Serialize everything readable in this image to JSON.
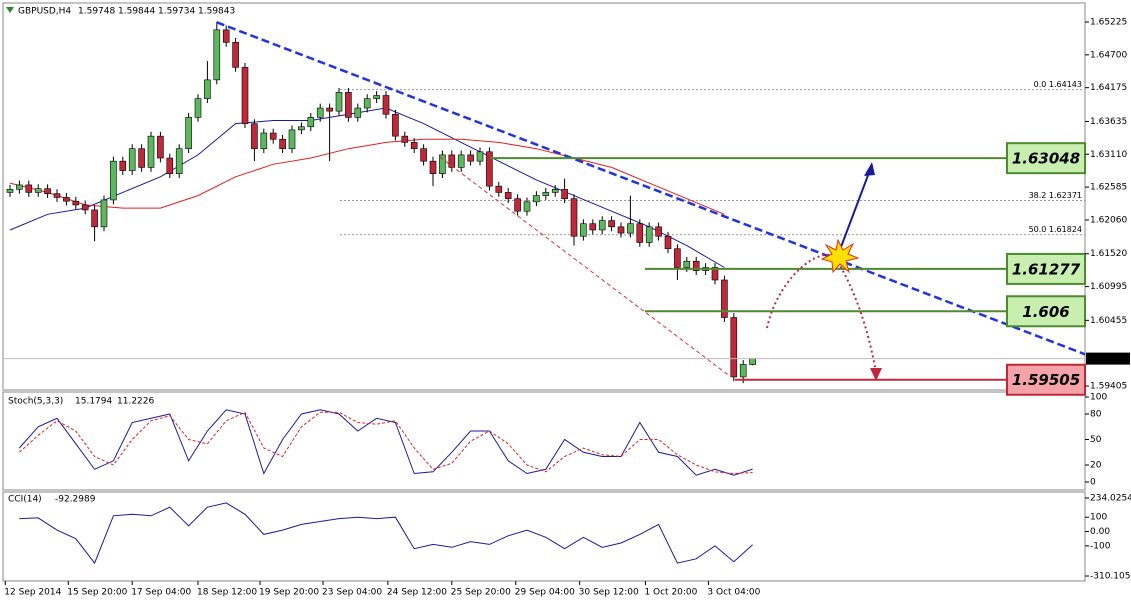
{
  "chart_data": [
    {
      "type": "candlestick",
      "title": "GBPUSD,H4",
      "open": [
        1.625,
        1.6255,
        1.6262,
        1.625,
        1.6256,
        1.6248,
        1.6242,
        1.6236,
        1.623,
        1.6222,
        1.6195,
        1.6238,
        1.63,
        1.6285,
        1.632,
        1.629,
        1.634,
        1.6305,
        1.628,
        1.632,
        1.637,
        1.64,
        1.643,
        1.651,
        1.649,
        1.645,
        1.636,
        1.632,
        1.6345,
        1.6335,
        1.632,
        1.635,
        1.6355,
        1.637,
        1.6385,
        1.638,
        1.641,
        1.637,
        1.6385,
        1.64,
        1.6405,
        1.6375,
        1.634,
        1.633,
        1.632,
        1.63,
        1.628,
        1.631,
        1.629,
        1.631,
        1.63,
        1.6315,
        1.626,
        1.625,
        1.624,
        1.622,
        1.6235,
        1.6245,
        1.625,
        1.6255,
        1.624,
        1.618,
        1.62,
        1.619,
        1.6205,
        1.6195,
        1.6185,
        1.62,
        1.617,
        1.6195,
        1.618,
        1.616,
        1.613,
        1.614,
        1.6125,
        1.613,
        1.611,
        1.605,
        1.5955,
        1.59748
      ],
      "high": [
        1.6262,
        1.6269,
        1.6269,
        1.6263,
        1.6263,
        1.6255,
        1.6249,
        1.6243,
        1.6237,
        1.6229,
        1.6245,
        1.6307,
        1.6307,
        1.6327,
        1.6327,
        1.6347,
        1.6347,
        1.6312,
        1.6327,
        1.6377,
        1.6407,
        1.646,
        1.6523,
        1.6517,
        1.6497,
        1.6457,
        1.6367,
        1.6352,
        1.6352,
        1.6342,
        1.6357,
        1.6362,
        1.6377,
        1.6392,
        1.6392,
        1.6417,
        1.6417,
        1.6392,
        1.6407,
        1.6412,
        1.6412,
        1.6382,
        1.6347,
        1.6337,
        1.6327,
        1.6307,
        1.6317,
        1.6317,
        1.6317,
        1.6317,
        1.6322,
        1.6322,
        1.6267,
        1.6257,
        1.6247,
        1.6242,
        1.6252,
        1.6257,
        1.6262,
        1.6272,
        1.6247,
        1.6207,
        1.6207,
        1.6212,
        1.6212,
        1.6202,
        1.6245,
        1.6207,
        1.6202,
        1.6202,
        1.6187,
        1.6167,
        1.6147,
        1.6147,
        1.6137,
        1.6137,
        1.6117,
        1.6057,
        1.5982,
        1.59844
      ],
      "low": [
        1.6243,
        1.6248,
        1.6243,
        1.6243,
        1.6241,
        1.6235,
        1.6229,
        1.6223,
        1.6215,
        1.6172,
        1.6188,
        1.6231,
        1.6278,
        1.6278,
        1.6283,
        1.6283,
        1.6298,
        1.6273,
        1.6273,
        1.6313,
        1.6363,
        1.6393,
        1.6423,
        1.6483,
        1.6443,
        1.6353,
        1.63,
        1.6313,
        1.6328,
        1.6313,
        1.6313,
        1.6343,
        1.6348,
        1.6363,
        1.63,
        1.6373,
        1.6363,
        1.6363,
        1.6378,
        1.6393,
        1.6368,
        1.6333,
        1.6323,
        1.6313,
        1.6293,
        1.626,
        1.6273,
        1.6283,
        1.6283,
        1.6293,
        1.6293,
        1.6253,
        1.6243,
        1.6233,
        1.6213,
        1.6213,
        1.6228,
        1.6238,
        1.6243,
        1.6233,
        1.6165,
        1.6173,
        1.6183,
        1.6183,
        1.6188,
        1.6178,
        1.6178,
        1.6163,
        1.6163,
        1.6173,
        1.6153,
        1.611,
        1.6123,
        1.6118,
        1.6118,
        1.6103,
        1.6043,
        1.5948,
        1.5945,
        1.59734
      ],
      "close": [
        1.6255,
        1.6262,
        1.625,
        1.6256,
        1.6248,
        1.6242,
        1.6236,
        1.623,
        1.6222,
        1.6195,
        1.6238,
        1.63,
        1.6285,
        1.632,
        1.629,
        1.634,
        1.6305,
        1.628,
        1.632,
        1.637,
        1.64,
        1.643,
        1.651,
        1.649,
        1.645,
        1.636,
        1.632,
        1.6345,
        1.6335,
        1.632,
        1.635,
        1.6355,
        1.637,
        1.6385,
        1.638,
        1.641,
        1.637,
        1.6385,
        1.64,
        1.6405,
        1.6375,
        1.634,
        1.633,
        1.632,
        1.63,
        1.628,
        1.631,
        1.629,
        1.631,
        1.63,
        1.6315,
        1.626,
        1.625,
        1.624,
        1.622,
        1.6235,
        1.6245,
        1.625,
        1.6255,
        1.624,
        1.618,
        1.62,
        1.619,
        1.6205,
        1.6195,
        1.6185,
        1.62,
        1.617,
        1.6195,
        1.618,
        1.616,
        1.613,
        1.614,
        1.6125,
        1.613,
        1.611,
        1.605,
        1.5955,
        1.5975,
        1.59843
      ],
      "up_color": "#5cb85c",
      "down_color": "#c0283a",
      "ylim": [
        1.59341,
        1.65529
      ],
      "yticks": [
        1.65225,
        {
          "value": 1.647,
          "label": "1.64700"
        },
        1.64175,
        1.63635,
        {
          "value": 1.6311,
          "label": "1.63110"
        },
        1.62585,
        {
          "value": 1.6206,
          "label": "1.62060"
        },
        {
          "value": 1.6152,
          "label": "1.61520"
        },
        1.60995,
        1.60455,
        1.59405
      ],
      "xticks": [
        {
          "value": -0.5,
          "label": "12 Sep 2014"
        },
        {
          "value": 6.2,
          "label": "15 Sep 20:00"
        },
        {
          "value": 13,
          "label": "17 Sep 04:00"
        },
        {
          "value": 20,
          "label": "18 Sep 12:00"
        },
        {
          "value": 26.6,
          "label": "19 Sep 20:00"
        },
        {
          "value": 33.3,
          "label": "23 Sep 04:00"
        },
        {
          "value": 40.2,
          "label": "24 Sep 12:00"
        },
        {
          "value": 47,
          "label": "25 Sep 20:00"
        },
        {
          "value": 53.8,
          "label": "29 Sep 04:00"
        },
        {
          "value": 60.6,
          "label": "30 Sep 12:00"
        },
        {
          "value": 67.6,
          "label": "1 Oct 20:00"
        },
        {
          "value": 74.3,
          "label": "3 Oct 04:00"
        }
      ],
      "ma": [
        {
          "color": "#1a1aa0",
          "x": [
            0,
            4,
            8,
            12,
            16,
            20,
            24,
            28,
            32,
            36,
            40,
            44,
            48,
            52,
            56,
            60,
            64,
            68,
            72,
            76
          ],
          "values": [
            1.619,
            1.6215,
            1.6225,
            1.625,
            1.6275,
            1.631,
            1.636,
            1.6365,
            1.6365,
            1.6375,
            1.6385,
            1.636,
            1.633,
            1.63,
            1.627,
            1.6245,
            1.622,
            1.6195,
            1.6165,
            1.613
          ]
        },
        {
          "color": "#e02020",
          "x": [
            0,
            4,
            8,
            12,
            16,
            20,
            24,
            28,
            32,
            36,
            40,
            44,
            48,
            52,
            56,
            60,
            64,
            68,
            72,
            76
          ],
          "values": [
            1.6265,
            1.625,
            1.623,
            1.6225,
            1.6225,
            1.6245,
            1.6275,
            1.6295,
            1.6305,
            1.632,
            1.633,
            1.6335,
            1.6335,
            1.633,
            1.632,
            1.6305,
            1.629,
            1.6265,
            1.624,
            1.6215
          ]
        }
      ],
      "trendlines": [
        {
          "color": "#2233dd",
          "x": [
            22,
            114.4
          ],
          "y": [
            1.6522,
            1.5991
          ]
        },
        {
          "color": "#e03030",
          "x": [
            45.7,
            76.6
          ],
          "y": [
            1.6307,
            1.5956
          ]
        }
      ],
      "fib": [
        {
          "label": "0.0 1.64143",
          "value": 1.64143
        },
        {
          "label": "38.2 1.62371",
          "value": 1.62371
        },
        {
          "label": "50.0 1.61824",
          "value": 1.61824
        }
      ],
      "levels": [
        {
          "value": 1.63048,
          "color": "#4e8a2e",
          "fill": "#c8eeb0"
        },
        {
          "value": 1.61277,
          "color": "#4e8a2e",
          "fill": "#c8eeb0"
        },
        {
          "value": 1.606,
          "color": "#4e8a2e",
          "fill": "#c8eeb0"
        },
        {
          "value": 1.59505,
          "color": "#c0283a",
          "fill": "#f4a3a8"
        }
      ]
    },
    {
      "type": "line",
      "title": "Stoch(5,3,3)",
      "x": [
        1,
        3,
        5,
        7,
        9,
        11,
        13,
        15,
        17,
        19,
        21,
        23,
        25,
        27,
        29,
        31,
        33,
        35,
        37,
        39,
        41,
        43,
        45,
        47,
        49,
        51,
        53,
        55,
        57,
        59,
        61,
        63,
        65,
        67,
        69,
        71,
        73,
        75,
        77,
        79
      ],
      "series": [
        {
          "color": "#1a1aa0",
          "values": [
            40,
            65,
            75,
            45,
            15,
            25,
            70,
            75,
            80,
            25,
            60,
            85,
            80,
            10,
            50,
            80,
            85,
            80,
            60,
            75,
            70,
            10,
            12,
            35,
            60,
            60,
            25,
            10,
            15,
            50,
            35,
            30,
            30,
            70,
            35,
            30,
            8,
            15,
            8,
            15.1794
          ]
        },
        {
          "color": "#e02020",
          "dash": true,
          "values": [
            35,
            55,
            72,
            60,
            30,
            20,
            50,
            72,
            78,
            50,
            45,
            72,
            82,
            40,
            30,
            65,
            82,
            82,
            70,
            68,
            72,
            40,
            15,
            22,
            48,
            60,
            45,
            20,
            12,
            30,
            40,
            32,
            30,
            50,
            50,
            32,
            20,
            12,
            10,
            11.2226
          ]
        }
      ],
      "ylim": [
        0,
        100
      ],
      "yticks": [
        0,
        20,
        50,
        80,
        100
      ]
    },
    {
      "type": "line",
      "title": "CCI(14)",
      "x": [
        1,
        3,
        5,
        7,
        9,
        11,
        13,
        15,
        17,
        19,
        21,
        23,
        25,
        27,
        29,
        31,
        33,
        35,
        37,
        39,
        41,
        43,
        45,
        47,
        49,
        51,
        53,
        55,
        57,
        59,
        61,
        63,
        65,
        67,
        69,
        71,
        73,
        75,
        77,
        79
      ],
      "series": [
        {
          "color": "#1a1aa0",
          "values": [
            90,
            95,
            10,
            -50,
            -220,
            110,
            120,
            110,
            170,
            40,
            170,
            200,
            120,
            -20,
            10,
            50,
            70,
            90,
            100,
            90,
            100,
            -120,
            -90,
            -110,
            -70,
            -90,
            -30,
            10,
            -40,
            -120,
            -40,
            -110,
            -80,
            -20,
            50,
            -220,
            -190,
            -100,
            -210,
            -92.2989
          ]
        }
      ],
      "ylim": [
        -310.1055,
        234.0254
      ],
      "yticks": [
        -310.1055,
        -100,
        {
          "value": 0,
          "label": "0.00"
        },
        100,
        234.0254
      ]
    }
  ]
}
